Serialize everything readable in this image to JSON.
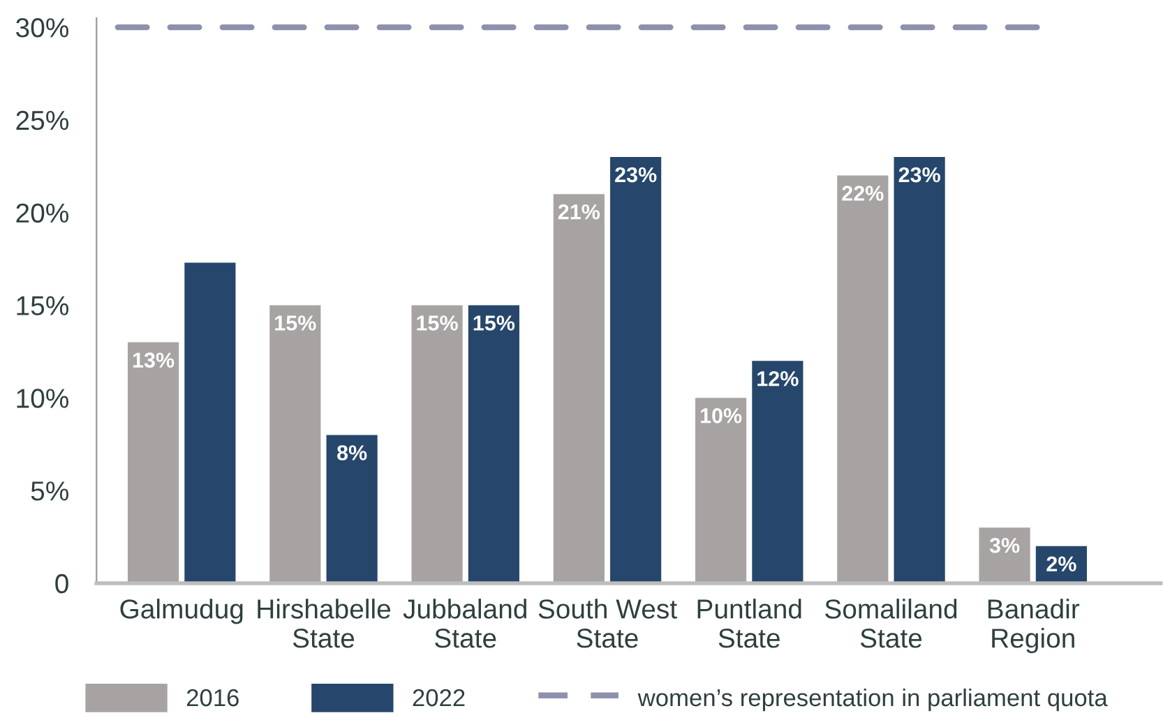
{
  "chart_data": {
    "type": "bar",
    "categories": [
      "Galmudug",
      "Hirshabelle\nState",
      "Jubbaland\nState",
      "South West\nState",
      "Puntland\nState",
      "Somaliland\nState",
      "Banadir\nRegion"
    ],
    "series": [
      {
        "name": "2016",
        "color": "#a7a3a2",
        "values": [
          13,
          15,
          15,
          21,
          10,
          22,
          3
        ],
        "value_labels": [
          "13%",
          "15%",
          "15%",
          "21%",
          "10%",
          "22%",
          "3%"
        ]
      },
      {
        "name": "2022",
        "color": "#26476b",
        "values": [
          17.3,
          8,
          15,
          23,
          12,
          23,
          2
        ],
        "value_labels": [
          null,
          "8%",
          "15%",
          "23%",
          "12%",
          "23%",
          "2%"
        ]
      }
    ],
    "ylim": [
      0,
      30.5
    ],
    "yticks": [
      {
        "value": 0,
        "label": "0"
      },
      {
        "value": 5,
        "label": "5%"
      },
      {
        "value": 10,
        "label": "10%"
      },
      {
        "value": 15,
        "label": "15%"
      },
      {
        "value": 20,
        "label": "20%"
      },
      {
        "value": 25,
        "label": "25%"
      },
      {
        "value": 30,
        "label": "30%"
      }
    ],
    "ref_lines": [
      {
        "axis": "y",
        "value": 30,
        "label": "women’s representation in parliament quota",
        "color": "#8d91ad",
        "line_style": "dashed"
      }
    ],
    "grid": false,
    "legend": "bottom"
  }
}
